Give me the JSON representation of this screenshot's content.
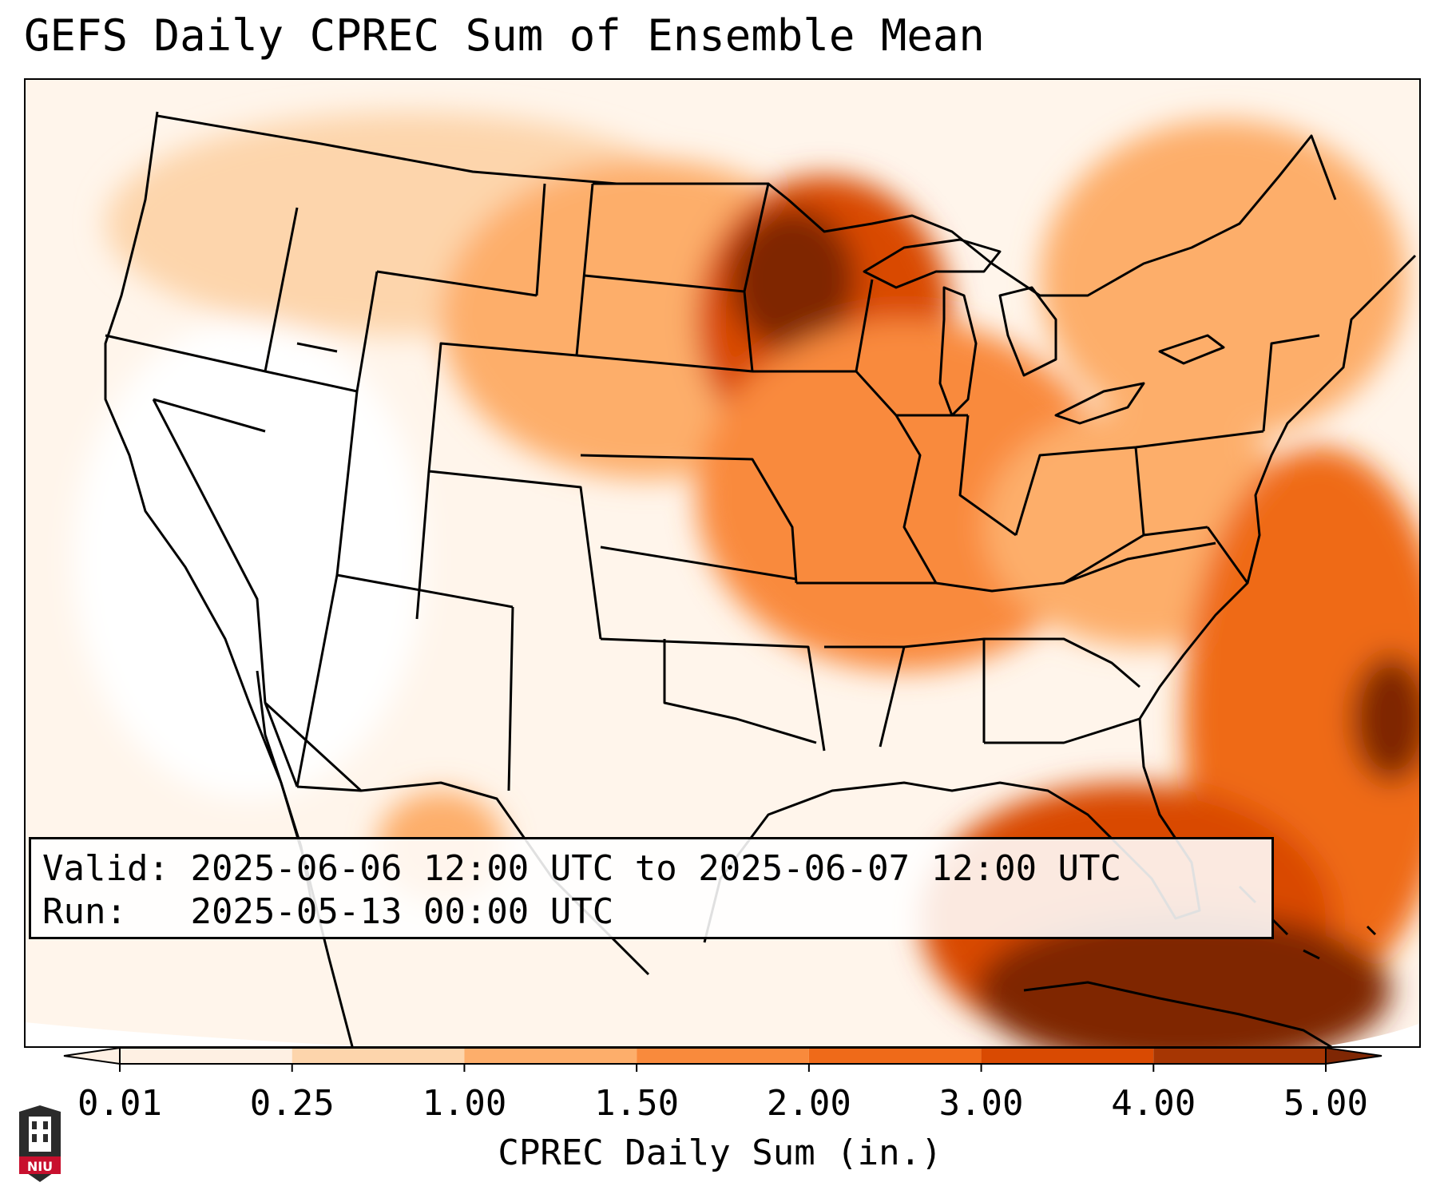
{
  "title": "GEFS Daily CPREC Sum of Ensemble Mean",
  "info": {
    "valid_label": "Valid:",
    "valid_value": "2025-06-06 12:00 UTC to 2025-06-07 12:00 UTC",
    "run_label": "Run:",
    "run_value": "2025-05-13 00:00 UTC"
  },
  "colorbar": {
    "label": "CPREC Daily Sum (in.)",
    "ticks": [
      "0.01",
      "0.25",
      "1.00",
      "1.50",
      "2.00",
      "3.00",
      "4.00",
      "5.00"
    ],
    "colors": [
      "#fef0e3",
      "#fdd5ac",
      "#fdae6b",
      "#f98a3c",
      "#ef6a19",
      "#d94a02",
      "#a63603",
      "#7f2704"
    ],
    "extend": "both"
  },
  "logo": {
    "text": "NIU",
    "icon": "niu-university-tower-logo",
    "colors": {
      "shield": "#2b2b2b",
      "band": "#c8102e"
    }
  },
  "map": {
    "projection": "lambert-conformal",
    "region": "Contiguous United States",
    "colormap": "Oranges",
    "features": [
      "state-borders",
      "coastlines",
      "country-borders",
      "great-lakes"
    ]
  }
}
